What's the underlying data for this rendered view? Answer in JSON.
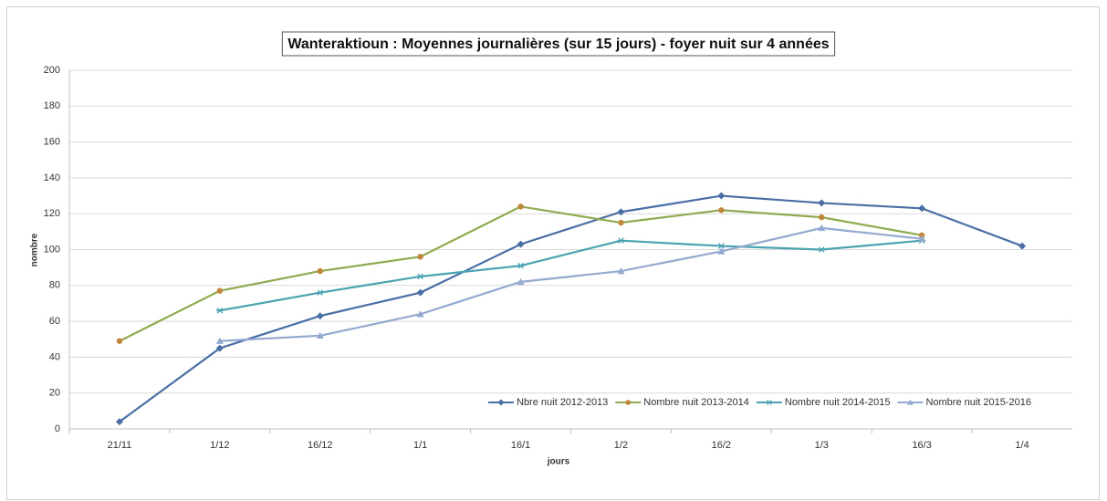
{
  "chart_data": {
    "type": "line",
    "title": "Wanteraktioun : Moyennes journalières (sur 15 jours) - foyer nuit sur 4 années",
    "x_label": "jours",
    "y_label": "nombre",
    "categories": [
      "21/11",
      "1/12",
      "16/12",
      "1/1",
      "16/1",
      "1/2",
      "16/2",
      "1/3",
      "16/3",
      "1/4"
    ],
    "series": [
      {
        "name": "Nbre nuit 2012-2013",
        "color": "#4a6fa5",
        "marker": "diamond",
        "marker_color": "#4a6fa5",
        "values": [
          4,
          45,
          63,
          76,
          103,
          121,
          130,
          126,
          123,
          102
        ]
      },
      {
        "name": "Nombre nuit 2013-2014",
        "color": "#8faa4f",
        "marker": "circle",
        "marker_color": "#c0873b",
        "values": [
          49,
          77,
          88,
          96,
          124,
          115,
          122,
          118,
          108,
          null
        ]
      },
      {
        "name": "Nombre nuit 2014-2015",
        "color": "#4aa3b0",
        "marker": "star",
        "marker_color": "#4aa3b0",
        "values": [
          null,
          66,
          76,
          85,
          91,
          105,
          102,
          100,
          105,
          null
        ]
      },
      {
        "name": "Nombre nuit 2015-2016",
        "color": "#93a9cf",
        "marker": "triangle",
        "marker_color": "#93a9cf",
        "values": [
          null,
          49,
          52,
          64,
          82,
          88,
          99,
          112,
          106,
          null
        ]
      }
    ],
    "ylim": [
      0,
      200
    ],
    "yticks": [
      0,
      20,
      40,
      60,
      80,
      100,
      120,
      140,
      160,
      180,
      200
    ],
    "grid": true,
    "legend": "lower right"
  }
}
